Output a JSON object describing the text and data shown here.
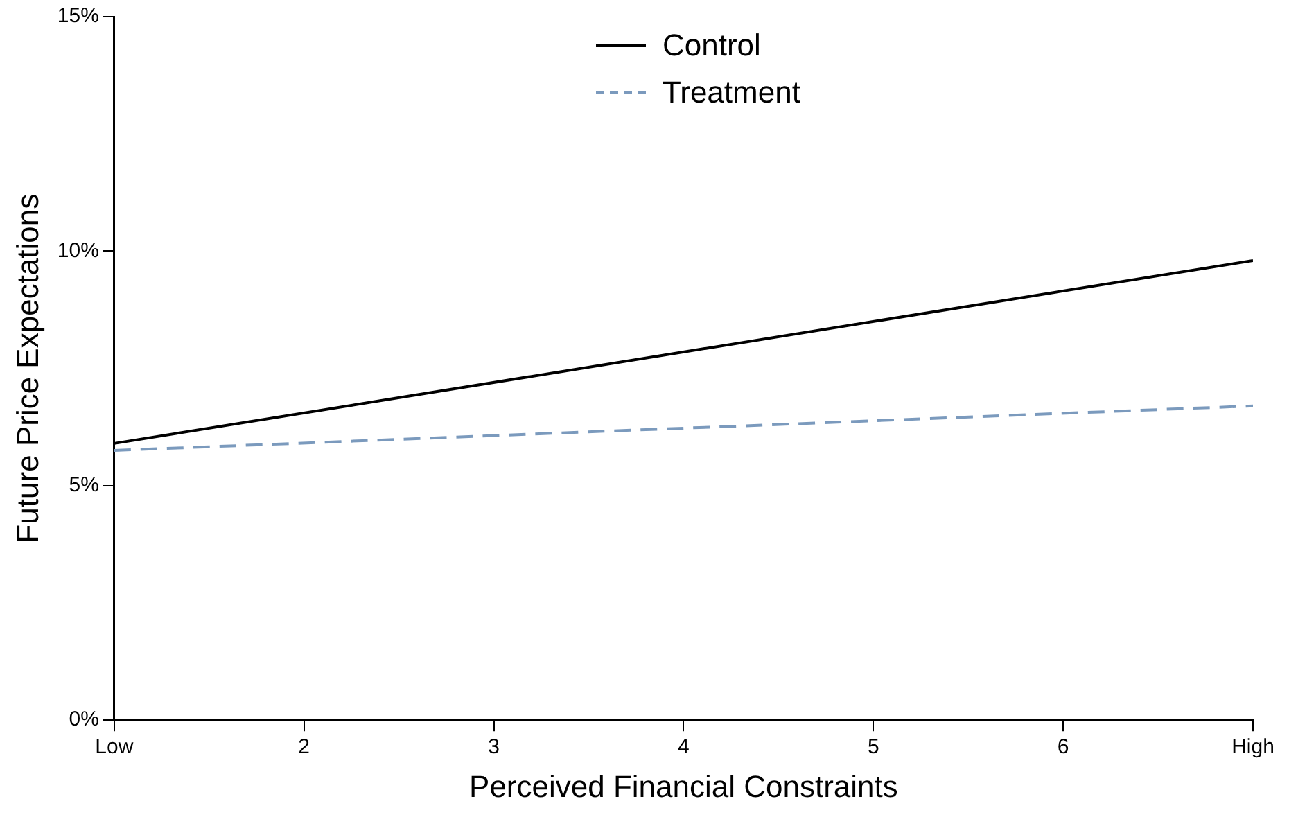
{
  "chart_data": {
    "type": "line",
    "xlabel": "Perceived Financial Constraints",
    "ylabel": "Future Price Expectations",
    "x": [
      1,
      7
    ],
    "series": [
      {
        "name": "Control",
        "color": "#000000",
        "line_style": "solid",
        "values": [
          5.9,
          9.8
        ]
      },
      {
        "name": "Treatment",
        "color": "#7b9abd",
        "line_style": "dashed",
        "values": [
          5.75,
          6.7
        ]
      }
    ],
    "xlim": [
      1,
      7
    ],
    "xticks": [
      {
        "value": 1,
        "label": "Low"
      },
      2,
      3,
      4,
      5,
      6,
      {
        "value": 7,
        "label": "High"
      }
    ],
    "ylim": [
      0,
      15
    ],
    "yticks": [
      {
        "value": 0,
        "label": "0%"
      },
      {
        "value": 5,
        "label": "5%"
      },
      {
        "value": 10,
        "label": "10%"
      },
      {
        "value": 15,
        "label": "15%"
      }
    ],
    "grid": false,
    "legend": "top",
    "marker": "none"
  }
}
